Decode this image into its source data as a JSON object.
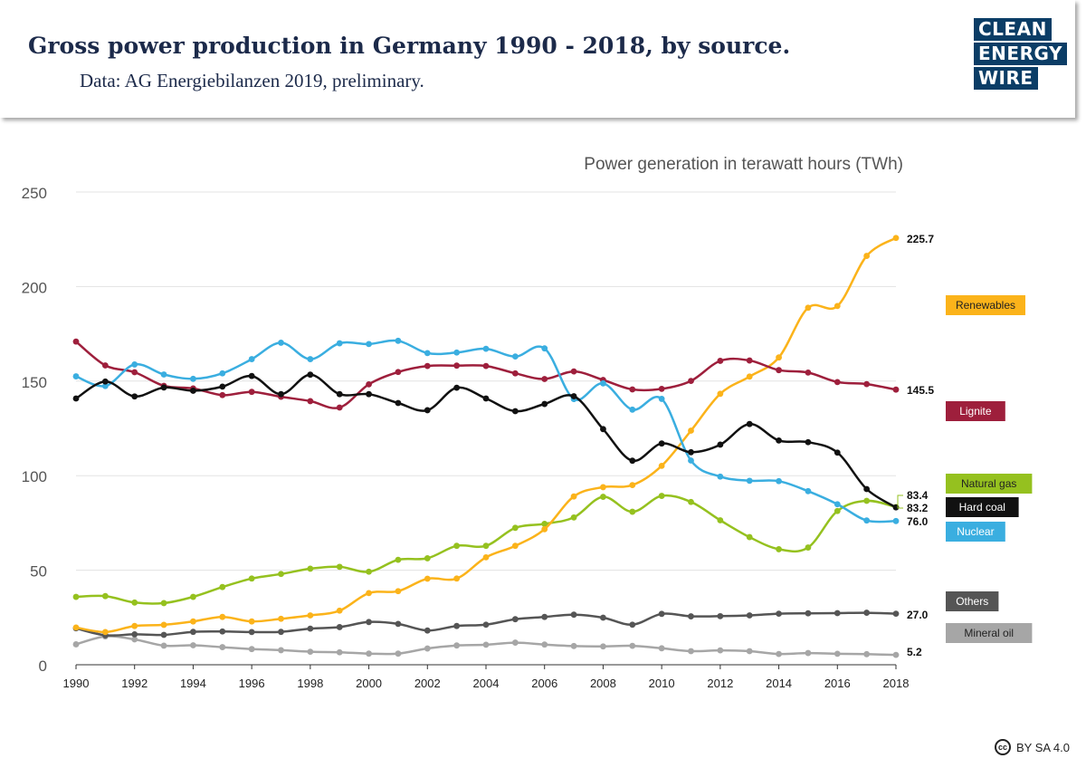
{
  "header": {
    "title": "Gross power production in Germany 1990 - 2018, by source.",
    "subtitle": "Data: AG Energiebilanzen 2019, preliminary."
  },
  "logo": {
    "lines": [
      "CLEAN",
      "ENERGY",
      "WIRE"
    ]
  },
  "license": {
    "text": "BY SA 4.0",
    "icon": "cc-icon"
  },
  "chart_data": {
    "type": "line",
    "title": "Power generation in terawatt hours (TWh)",
    "xlabel": "",
    "ylabel": "",
    "ylim": [
      0,
      250
    ],
    "yticks": [
      0,
      50,
      100,
      150,
      200,
      250
    ],
    "xticks": [
      1990,
      1992,
      1994,
      1996,
      1998,
      2000,
      2002,
      2004,
      2006,
      2008,
      2010,
      2012,
      2014,
      2016,
      2018
    ],
    "grid": "horizontal",
    "legend": "right",
    "x": [
      1990,
      1991,
      1992,
      1993,
      1994,
      1995,
      1996,
      1997,
      1998,
      1999,
      2000,
      2001,
      2002,
      2003,
      2004,
      2005,
      2006,
      2007,
      2008,
      2009,
      2010,
      2011,
      2012,
      2013,
      2014,
      2015,
      2016,
      2017,
      2018
    ],
    "series": [
      {
        "name": "Renewables",
        "color": "#fbb31a",
        "end_label": "225.7",
        "values": [
          19.7,
          17.3,
          20.5,
          21.1,
          22.9,
          25.3,
          22.9,
          24.3,
          26.1,
          28.6,
          37.9,
          38.9,
          45.5,
          45.6,
          56.8,
          62.9,
          71.7,
          89.0,
          93.9,
          95.0,
          105.2,
          123.8,
          143.3,
          152.4,
          162.5,
          188.8,
          189.7,
          216.2,
          225.7
        ]
      },
      {
        "name": "Lignite",
        "color": "#9e1f3c",
        "end_label": "145.5",
        "values": [
          170.9,
          158.3,
          154.7,
          147.5,
          146.1,
          142.6,
          144.3,
          141.7,
          139.4,
          136.0,
          148.3,
          154.8,
          158.0,
          158.2,
          158.0,
          154.1,
          151.1,
          155.1,
          150.6,
          145.6,
          145.9,
          150.1,
          160.7,
          160.9,
          155.8,
          154.5,
          149.5,
          148.4,
          145.5
        ]
      },
      {
        "name": "Natural gas",
        "color": "#95c11f",
        "end_label": "83.4",
        "values": [
          35.9,
          36.3,
          32.9,
          32.6,
          35.9,
          41.1,
          45.6,
          48.0,
          50.8,
          51.8,
          49.2,
          55.5,
          56.3,
          62.9,
          62.9,
          72.4,
          74.5,
          77.9,
          88.8,
          80.9,
          89.3,
          86.1,
          76.4,
          67.5,
          61.1,
          62.0,
          81.3,
          86.7,
          83.4
        ]
      },
      {
        "name": "Hard coal",
        "color": "#111111",
        "end_label": "83.2",
        "values": [
          140.8,
          149.8,
          141.9,
          146.6,
          144.9,
          147.1,
          152.7,
          143.1,
          153.4,
          143.1,
          143.1,
          138.4,
          134.6,
          146.5,
          140.8,
          134.1,
          137.9,
          142.0,
          124.6,
          107.9,
          117.0,
          112.4,
          116.4,
          127.3,
          118.6,
          117.7,
          112.2,
          92.9,
          83.2
        ]
      },
      {
        "name": "Nuclear",
        "color": "#3aaee0",
        "end_label": "76.0",
        "values": [
          152.5,
          147.4,
          158.8,
          153.5,
          151.2,
          154.1,
          161.6,
          170.3,
          161.6,
          170.0,
          169.6,
          171.3,
          164.8,
          165.1,
          167.1,
          163.0,
          167.3,
          140.5,
          148.8,
          134.9,
          140.6,
          108.0,
          99.5,
          97.3,
          97.1,
          91.8,
          84.9,
          76.3,
          76.0
        ]
      },
      {
        "name": "Others",
        "color": "#555555",
        "end_label": "27.0",
        "values": [
          19.3,
          15.6,
          16.1,
          15.8,
          17.4,
          17.6,
          17.3,
          17.4,
          19.1,
          19.9,
          22.6,
          21.6,
          18.1,
          20.5,
          21.2,
          24.1,
          25.3,
          26.5,
          24.9,
          21.2,
          26.9,
          25.6,
          25.7,
          26.1,
          27.0,
          27.2,
          27.3,
          27.5,
          27.0
        ]
      },
      {
        "name": "Mineral oil",
        "color": "#a6a6a6",
        "end_label": "5.2",
        "values": [
          10.8,
          15.0,
          13.4,
          10.1,
          10.3,
          9.3,
          8.3,
          7.7,
          6.9,
          6.6,
          5.9,
          5.9,
          8.6,
          10.2,
          10.6,
          11.7,
          10.7,
          9.9,
          9.7,
          10.0,
          8.7,
          7.2,
          7.6,
          7.2,
          5.7,
          6.2,
          5.8,
          5.6,
          5.2
        ]
      }
    ]
  }
}
